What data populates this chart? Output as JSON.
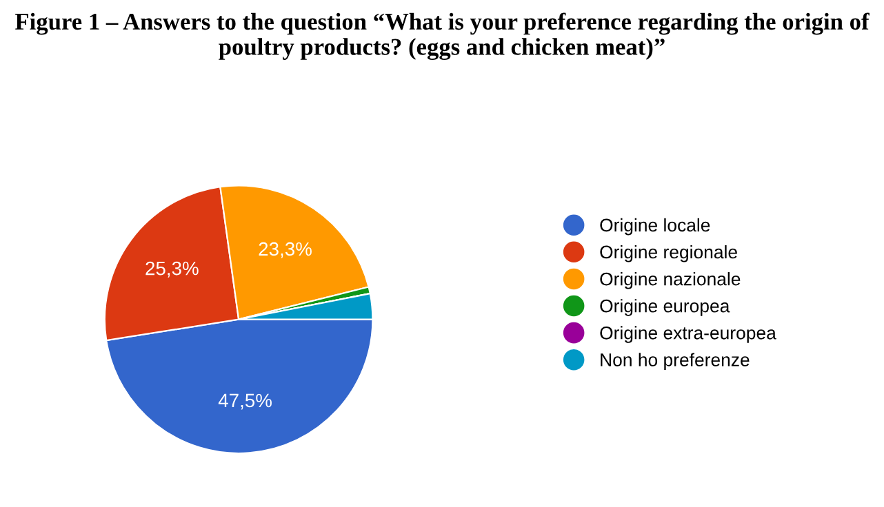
{
  "chart_data": {
    "type": "pie",
    "title": "Figure 1 – Answers to the question “What is your preference regarding the origin of poultry products? (eggs and chicken meat)”",
    "categories": [
      "Origine locale",
      "Origine regionale",
      "Origine nazionale",
      "Origine europea",
      "Origine extra-europea",
      "Non ho preferenze"
    ],
    "values": [
      47.5,
      25.3,
      23.3,
      0.8,
      0,
      3.1
    ],
    "colors": [
      "#3366cc",
      "#dc3912",
      "#ff9900",
      "#109618",
      "#990099",
      "#0099c6"
    ],
    "value_labels": [
      "47,5%",
      "25,3%",
      "23,3%",
      null,
      null,
      null
    ],
    "legend": "right"
  }
}
